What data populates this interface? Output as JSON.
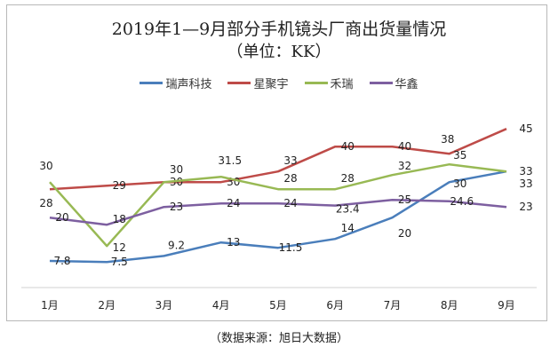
{
  "chart_data": {
    "type": "line",
    "title": "2019年1—9月部分手机镜头厂商出货量情况",
    "subtitle": "（单位：KK）",
    "categories": [
      "1月",
      "2月",
      "3月",
      "4月",
      "5月",
      "6月",
      "7月",
      "8月",
      "9月"
    ],
    "series": [
      {
        "name": "瑞声科技",
        "color": "#4a7ebb",
        "values": [
          7.8,
          7.5,
          9.2,
          13,
          11.5,
          14,
          20,
          30,
          33
        ]
      },
      {
        "name": "星聚宇",
        "color": "#be4b48",
        "values": [
          28,
          29,
          30,
          30,
          33,
          40,
          40,
          38,
          45
        ]
      },
      {
        "name": "禾瑞",
        "color": "#98b954",
        "values": [
          30,
          12,
          30,
          31.5,
          28,
          28,
          32,
          35,
          33
        ]
      },
      {
        "name": "华鑫",
        "color": "#7d5fa0",
        "values": [
          20,
          18,
          23,
          24,
          24,
          23.4,
          25,
          24.6,
          23
        ]
      }
    ],
    "ylim": [
      0,
      50
    ],
    "grid": false,
    "legend": "top",
    "data_labels": true
  },
  "caption": "（数据来源：旭日大数据）"
}
